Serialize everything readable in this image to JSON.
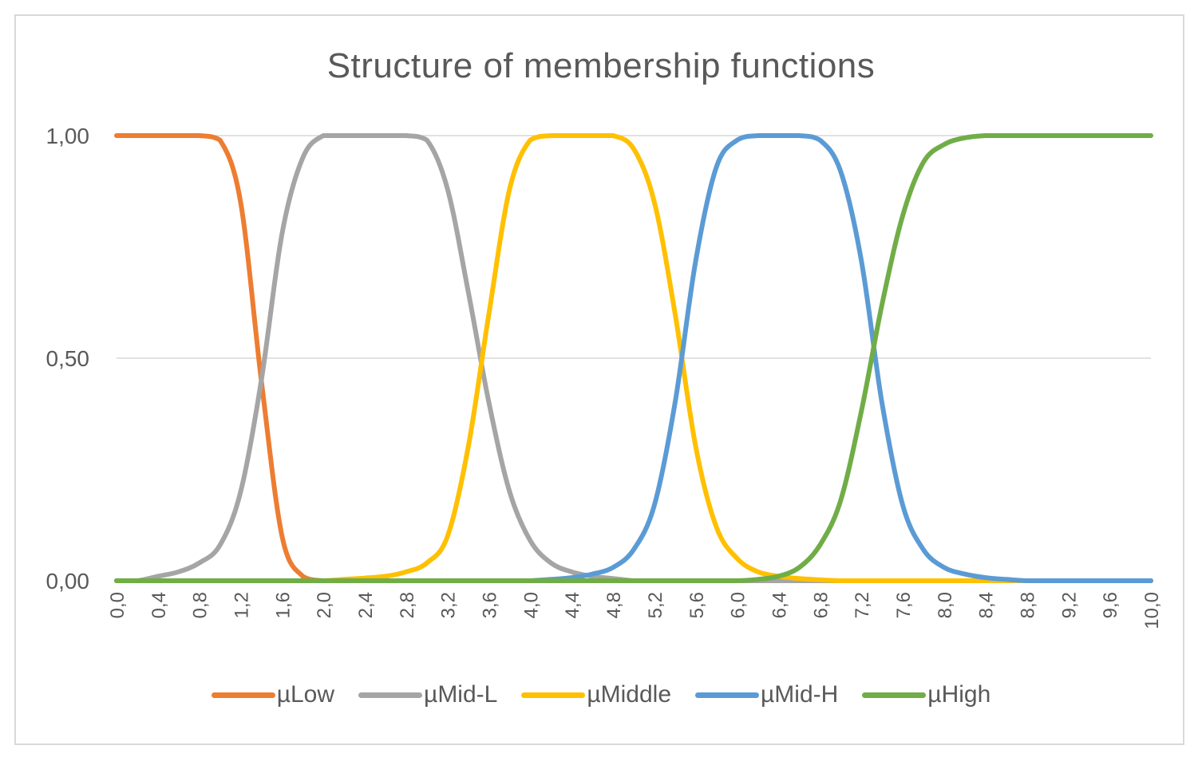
{
  "chart_data": {
    "type": "line",
    "title": "Structure of membership functions",
    "xlabel": "",
    "ylabel": "",
    "xlim": [
      0,
      10
    ],
    "ylim": [
      0,
      1
    ],
    "y_ticks": [
      "0,00",
      "0,50",
      "1,00"
    ],
    "x_ticks": [
      "0,0",
      "0,4",
      "0,8",
      "1,2",
      "1,6",
      "2,0",
      "2,4",
      "2,8",
      "3,2",
      "3,6",
      "4,0",
      "4,4",
      "4,8",
      "5,2",
      "5,6",
      "6,0",
      "6,4",
      "6,8",
      "7,2",
      "7,6",
      "8,0",
      "8,4",
      "8,8",
      "9,2",
      "9,6",
      "10,0"
    ],
    "grid": true,
    "legend_position": "bottom",
    "x": [
      0,
      0.2,
      0.4,
      0.6,
      0.8,
      1.0,
      1.2,
      1.4,
      1.6,
      1.8,
      2.0,
      2.2,
      2.4,
      2.6,
      2.8,
      3.0,
      3.2,
      3.4,
      3.6,
      3.8,
      4.0,
      4.2,
      4.4,
      4.6,
      4.8,
      5.0,
      5.2,
      5.4,
      5.6,
      5.8,
      6.0,
      6.2,
      6.4,
      6.6,
      6.8,
      7.0,
      7.2,
      7.4,
      7.6,
      7.8,
      8.0,
      8.2,
      8.4,
      8.6,
      8.8,
      9.0,
      9.2,
      9.4,
      9.6,
      9.8,
      10.0
    ],
    "series": [
      {
        "name": "µLow",
        "color": "#ED7D31",
        "values": [
          1,
          1,
          1,
          1,
          1,
          0.99,
          0.85,
          0.45,
          0.1,
          0.01,
          0,
          0,
          0,
          0,
          0,
          0,
          0,
          0,
          0,
          0,
          0,
          0,
          0,
          0,
          0,
          0,
          0,
          0,
          0,
          0,
          0,
          0,
          0,
          0,
          0,
          0,
          0,
          0,
          0,
          0,
          0,
          0,
          0,
          0,
          0,
          0,
          0,
          0,
          0,
          0,
          0
        ]
      },
      {
        "name": "µMid-L",
        "color": "#A5A5A5",
        "values": [
          0,
          0,
          0.01,
          0.02,
          0.04,
          0.08,
          0.2,
          0.45,
          0.78,
          0.95,
          1,
          1,
          1,
          1,
          1,
          0.99,
          0.88,
          0.65,
          0.4,
          0.2,
          0.09,
          0.04,
          0.02,
          0.01,
          0.005,
          0,
          0,
          0,
          0,
          0,
          0,
          0,
          0,
          0,
          0,
          0,
          0,
          0,
          0,
          0,
          0,
          0,
          0,
          0,
          0,
          0,
          0,
          0,
          0,
          0,
          0
        ]
      },
      {
        "name": "µMiddle",
        "color": "#FFC000",
        "values": [
          0,
          0,
          0,
          0,
          0,
          0,
          0,
          0,
          0,
          0,
          0,
          0.003,
          0.006,
          0.01,
          0.02,
          0.04,
          0.1,
          0.3,
          0.6,
          0.88,
          0.99,
          1,
          1,
          1,
          1,
          0.97,
          0.85,
          0.6,
          0.3,
          0.12,
          0.05,
          0.02,
          0.01,
          0.005,
          0.002,
          0,
          0,
          0,
          0,
          0,
          0,
          0,
          0,
          0,
          0,
          0,
          0,
          0,
          0,
          0,
          0
        ]
      },
      {
        "name": "µMid-H",
        "color": "#5B9BD5",
        "values": [
          0,
          0,
          0,
          0,
          0,
          0,
          0,
          0,
          0,
          0,
          0,
          0,
          0,
          0,
          0,
          0,
          0,
          0,
          0,
          0,
          0,
          0.003,
          0.007,
          0.015,
          0.03,
          0.07,
          0.17,
          0.4,
          0.72,
          0.93,
          0.99,
          1,
          1,
          1,
          0.99,
          0.92,
          0.72,
          0.4,
          0.17,
          0.07,
          0.03,
          0.015,
          0.007,
          0.003,
          0,
          0,
          0,
          0,
          0,
          0,
          0
        ]
      },
      {
        "name": "µHigh",
        "color": "#70AD47",
        "values": [
          0,
          0,
          0,
          0,
          0,
          0,
          0,
          0,
          0,
          0,
          0,
          0,
          0,
          0,
          0,
          0,
          0,
          0,
          0,
          0,
          0,
          0,
          0,
          0,
          0,
          0,
          0,
          0,
          0,
          0,
          0,
          0.003,
          0.01,
          0.03,
          0.08,
          0.18,
          0.38,
          0.62,
          0.82,
          0.94,
          0.98,
          0.995,
          1,
          1,
          1,
          1,
          1,
          1,
          1,
          1,
          1
        ]
      }
    ]
  }
}
